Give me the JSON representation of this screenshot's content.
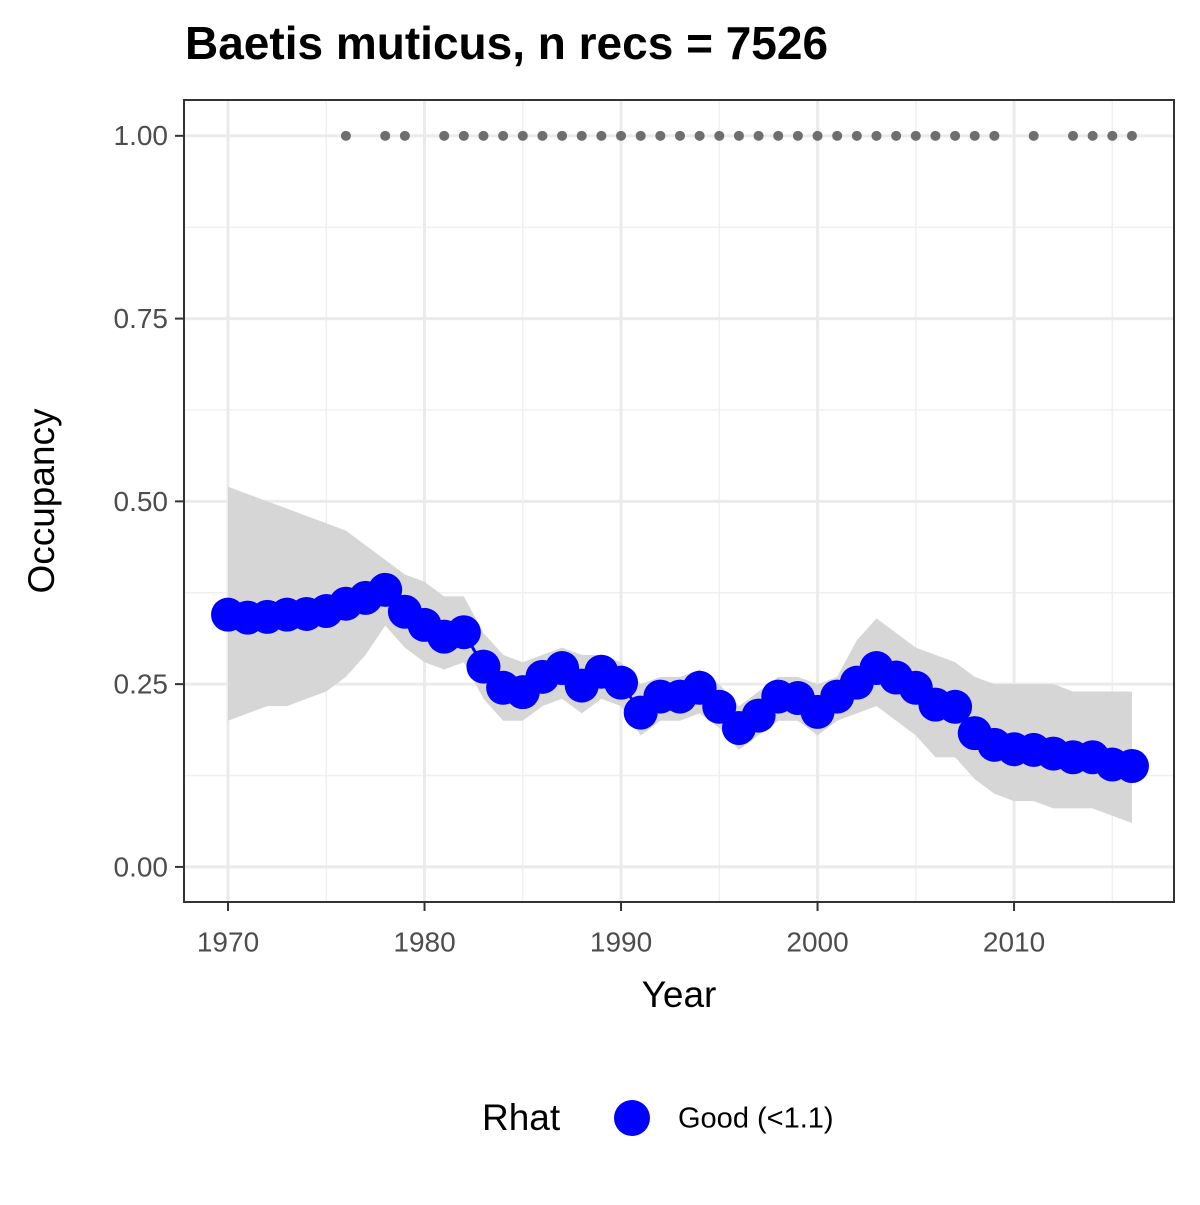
{
  "chart_data": {
    "type": "line",
    "title": "Baetis muticus, n recs = 7526",
    "x_label": "Year",
    "y_label": "Occupancy",
    "x": [
      1970,
      1971,
      1972,
      1973,
      1974,
      1975,
      1976,
      1977,
      1978,
      1979,
      1980,
      1981,
      1982,
      1983,
      1984,
      1985,
      1986,
      1987,
      1988,
      1989,
      1990,
      1991,
      1992,
      1993,
      1994,
      1995,
      1996,
      1997,
      1998,
      1999,
      2000,
      2001,
      2002,
      2003,
      2004,
      2005,
      2006,
      2007,
      2008,
      2009,
      2010,
      2011,
      2012,
      2013,
      2014,
      2015,
      2016
    ],
    "series": [
      {
        "name": "Good (<1.1)",
        "color": "#0000ff",
        "values": [
          0.345,
          0.341,
          0.342,
          0.345,
          0.346,
          0.35,
          0.36,
          0.368,
          0.379,
          0.349,
          0.331,
          0.315,
          0.321,
          0.274,
          0.245,
          0.239,
          0.26,
          0.272,
          0.248,
          0.267,
          0.252,
          0.211,
          0.233,
          0.233,
          0.245,
          0.219,
          0.19,
          0.207,
          0.233,
          0.231,
          0.212,
          0.233,
          0.252,
          0.272,
          0.259,
          0.245,
          0.222,
          0.219,
          0.183,
          0.167,
          0.161,
          0.16,
          0.155,
          0.15,
          0.15,
          0.14,
          0.138
        ]
      }
    ],
    "ribbon": {
      "color": "#d6d6d6",
      "upper": [
        0.52,
        0.51,
        0.5,
        0.49,
        0.48,
        0.47,
        0.46,
        0.44,
        0.42,
        0.4,
        0.39,
        0.37,
        0.37,
        0.32,
        0.29,
        0.28,
        0.29,
        0.3,
        0.29,
        0.29,
        0.28,
        0.25,
        0.26,
        0.26,
        0.27,
        0.25,
        0.22,
        0.24,
        0.26,
        0.26,
        0.25,
        0.26,
        0.31,
        0.34,
        0.32,
        0.3,
        0.29,
        0.28,
        0.26,
        0.25,
        0.25,
        0.25,
        0.25,
        0.24,
        0.24,
        0.24,
        0.24
      ],
      "lower": [
        0.2,
        0.21,
        0.22,
        0.22,
        0.23,
        0.24,
        0.26,
        0.29,
        0.33,
        0.3,
        0.28,
        0.27,
        0.28,
        0.23,
        0.2,
        0.2,
        0.22,
        0.23,
        0.21,
        0.23,
        0.22,
        0.18,
        0.2,
        0.2,
        0.21,
        0.19,
        0.16,
        0.18,
        0.2,
        0.2,
        0.18,
        0.2,
        0.21,
        0.22,
        0.2,
        0.18,
        0.15,
        0.15,
        0.12,
        0.1,
        0.09,
        0.09,
        0.08,
        0.08,
        0.08,
        0.07,
        0.06
      ]
    },
    "detections": {
      "color": "#6e6e6e",
      "x": [
        1976,
        1978,
        1979,
        1981,
        1982,
        1983,
        1984,
        1985,
        1986,
        1987,
        1988,
        1989,
        1990,
        1991,
        1992,
        1993,
        1994,
        1995,
        1996,
        1997,
        1998,
        1999,
        2000,
        2001,
        2002,
        2003,
        2004,
        2005,
        2006,
        2007,
        2008,
        2009,
        2011,
        2013,
        2014,
        2015,
        2016
      ],
      "values": [
        1,
        1,
        1,
        1,
        1,
        1,
        1,
        1,
        1,
        1,
        1,
        1,
        1,
        1,
        1,
        1,
        1,
        1,
        1,
        1,
        1,
        1,
        1,
        1,
        1,
        1,
        1,
        1,
        1,
        1,
        1,
        1,
        1,
        1,
        1,
        1,
        1
      ]
    },
    "xlim": [
      1967.76,
      2018.14
    ],
    "ylim": [
      -0.048,
      1.049
    ],
    "xticks": [
      1970,
      1980,
      1990,
      2000,
      2010
    ],
    "minor_xticks": [
      1975,
      1985,
      1995,
      2005,
      2015
    ],
    "yticks": [
      {
        "value": 0,
        "label": "0.00"
      },
      {
        "value": 0.25,
        "label": "0.25"
      },
      {
        "value": 0.5,
        "label": "0.50"
      },
      {
        "value": 0.75,
        "label": "0.75"
      },
      {
        "value": 1,
        "label": "1.00"
      }
    ],
    "minor_yticks": [
      0.125,
      0.375,
      0.625,
      0.875
    ],
    "grid": true,
    "legend": {
      "title": "Rhat",
      "position": "bottom"
    }
  }
}
